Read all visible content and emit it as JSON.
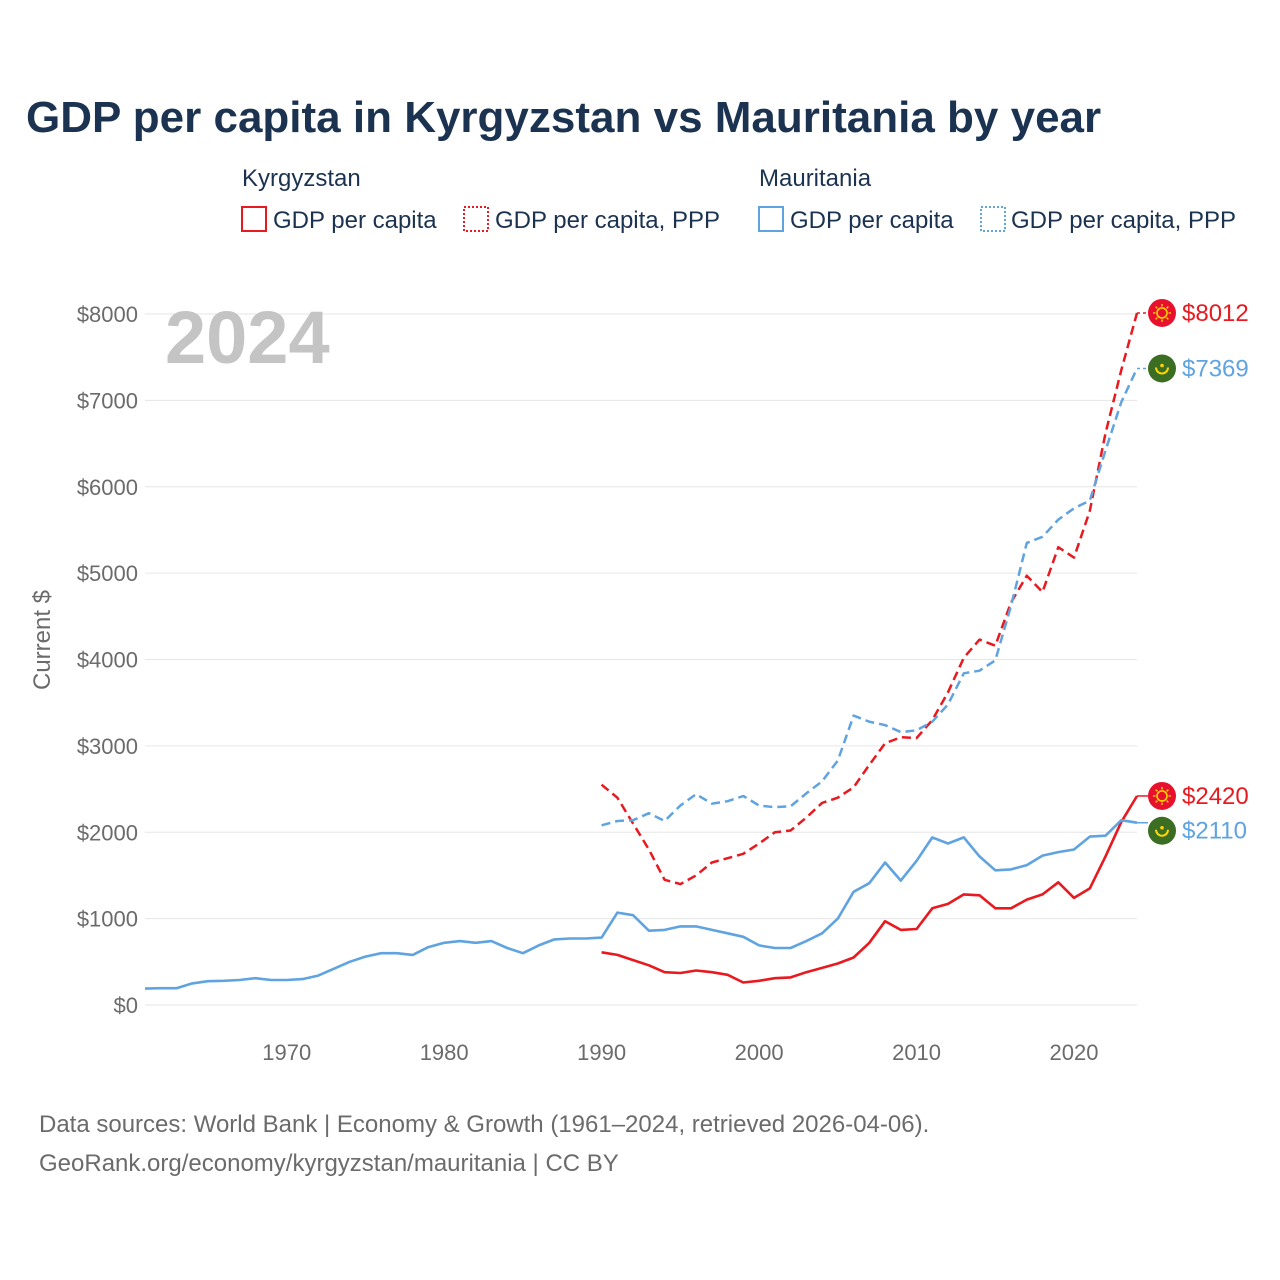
{
  "chart_data": {
    "type": "line",
    "title": "GDP per capita in Kyrgyzstan vs Mauritania by year",
    "ylabel": "Current $",
    "xlabel": "",
    "year_overlay": "2024",
    "xlim": [
      1961,
      2024
    ],
    "ylim": [
      0,
      8000
    ],
    "x_ticks": [
      1970,
      1980,
      1990,
      2000,
      2010,
      2020
    ],
    "x_tick_labels": [
      "1970",
      "1980",
      "1990",
      "2000",
      "2010",
      "2020"
    ],
    "y_ticks": [
      0,
      1000,
      2000,
      3000,
      4000,
      5000,
      6000,
      7000,
      8000
    ],
    "y_tick_labels": [
      "$0",
      "$1000",
      "$2000",
      "$3000",
      "$4000",
      "$5000",
      "$6000",
      "$7000",
      "$8000"
    ],
    "legend": {
      "groups": [
        {
          "country": "Kyrgyzstan",
          "entries": [
            "GDP per capita",
            "GDP per capita, PPP"
          ],
          "color": "#e8191f"
        },
        {
          "country": "Mauritania",
          "entries": [
            "GDP per capita",
            "GDP per capita, PPP"
          ],
          "color": "#5fa3e0"
        }
      ]
    },
    "series": [
      {
        "name": "Kyrgyzstan GDP per capita PPP",
        "country": "Kyrgyzstan",
        "style": "dashed",
        "color": "#e8191f",
        "end_label": "$8012",
        "x": [
          1990,
          1991,
          1992,
          1993,
          1994,
          1995,
          1996,
          1997,
          1998,
          1999,
          2000,
          2001,
          2002,
          2003,
          2004,
          2005,
          2006,
          2007,
          2008,
          2009,
          2010,
          2011,
          2012,
          2013,
          2014,
          2015,
          2016,
          2017,
          2018,
          2019,
          2020,
          2021,
          2022,
          2023,
          2024
        ],
        "values": [
          2550,
          2400,
          2100,
          1800,
          1450,
          1400,
          1500,
          1650,
          1700,
          1750,
          1870,
          2000,
          2020,
          2170,
          2340,
          2400,
          2520,
          2780,
          3030,
          3100,
          3090,
          3300,
          3620,
          4020,
          4230,
          4160,
          4660,
          4970,
          4780,
          5300,
          5180,
          5720,
          6620,
          7350,
          8012
        ]
      },
      {
        "name": "Mauritania GDP per capita PPP",
        "country": "Mauritania",
        "style": "dashed",
        "color": "#5fa3e0",
        "end_label": "$7369",
        "x": [
          1990,
          1991,
          1992,
          1993,
          1994,
          1995,
          1996,
          1997,
          1998,
          1999,
          2000,
          2001,
          2002,
          2003,
          2004,
          2005,
          2006,
          2007,
          2008,
          2009,
          2010,
          2011,
          2012,
          2013,
          2014,
          2015,
          2016,
          2017,
          2018,
          2019,
          2020,
          2021,
          2022,
          2023,
          2024
        ],
        "values": [
          2080,
          2130,
          2140,
          2220,
          2130,
          2310,
          2440,
          2330,
          2360,
          2420,
          2310,
          2290,
          2300,
          2450,
          2590,
          2830,
          3350,
          3280,
          3240,
          3160,
          3180,
          3280,
          3480,
          3840,
          3870,
          3990,
          4620,
          5350,
          5420,
          5620,
          5750,
          5840,
          6420,
          6980,
          7369
        ]
      },
      {
        "name": "Kyrgyzstan GDP per capita",
        "country": "Kyrgyzstan",
        "style": "solid",
        "color": "#e8191f",
        "end_label": "$2420",
        "x": [
          1990,
          1991,
          1992,
          1993,
          1994,
          1995,
          1996,
          1997,
          1998,
          1999,
          2000,
          2001,
          2002,
          2003,
          2004,
          2005,
          2006,
          2007,
          2008,
          2009,
          2010,
          2011,
          2012,
          2013,
          2014,
          2015,
          2016,
          2017,
          2018,
          2019,
          2020,
          2021,
          2022,
          2023,
          2024
        ],
        "values": [
          610,
          580,
          520,
          460,
          380,
          370,
          400,
          380,
          350,
          260,
          280,
          310,
          320,
          380,
          430,
          480,
          550,
          720,
          970,
          870,
          880,
          1120,
          1170,
          1280,
          1270,
          1120,
          1120,
          1220,
          1280,
          1420,
          1240,
          1350,
          1720,
          2120,
          2420
        ]
      },
      {
        "name": "Mauritania GDP per capita",
        "country": "Mauritania",
        "style": "solid",
        "color": "#5fa3e0",
        "end_label": "$2110",
        "x": [
          1961,
          1962,
          1963,
          1964,
          1965,
          1966,
          1967,
          1968,
          1969,
          1970,
          1971,
          1972,
          1973,
          1974,
          1975,
          1976,
          1977,
          1978,
          1979,
          1980,
          1981,
          1982,
          1983,
          1984,
          1985,
          1986,
          1987,
          1988,
          1989,
          1990,
          1991,
          1992,
          1993,
          1994,
          1995,
          1996,
          1997,
          1998,
          1999,
          2000,
          2001,
          2002,
          2003,
          2004,
          2005,
          2006,
          2007,
          2008,
          2009,
          2010,
          2011,
          2012,
          2013,
          2014,
          2015,
          2016,
          2017,
          2018,
          2019,
          2020,
          2021,
          2022,
          2023,
          2024
        ],
        "values": [
          190,
          195,
          195,
          250,
          275,
          280,
          290,
          310,
          290,
          290,
          300,
          340,
          420,
          500,
          560,
          600,
          600,
          580,
          670,
          720,
          740,
          720,
          740,
          660,
          600,
          690,
          760,
          770,
          770,
          780,
          1070,
          1040,
          860,
          870,
          910,
          910,
          870,
          830,
          790,
          690,
          660,
          660,
          740,
          830,
          1000,
          1310,
          1410,
          1650,
          1440,
          1670,
          1940,
          1870,
          1940,
          1720,
          1560,
          1570,
          1620,
          1730,
          1770,
          1800,
          1950,
          1960,
          2140,
          2110
        ]
      }
    ],
    "source_lines": [
      "Data sources: World Bank | Economy & Growth (1961–2024, retrieved 2026-04-06).",
      "GeoRank.org/economy/kyrgyzstan/mauritania | CC BY"
    ]
  },
  "colors": {
    "kyrgyzstan": "#e8191f",
    "mauritania": "#5fa3e0",
    "kyrgyzstan_flag": "#e8112d",
    "kyrgyzstan_sun": "#ffd200",
    "mauritania_flag": "#3b6e22",
    "mauritania_emblem": "#ffd700"
  }
}
